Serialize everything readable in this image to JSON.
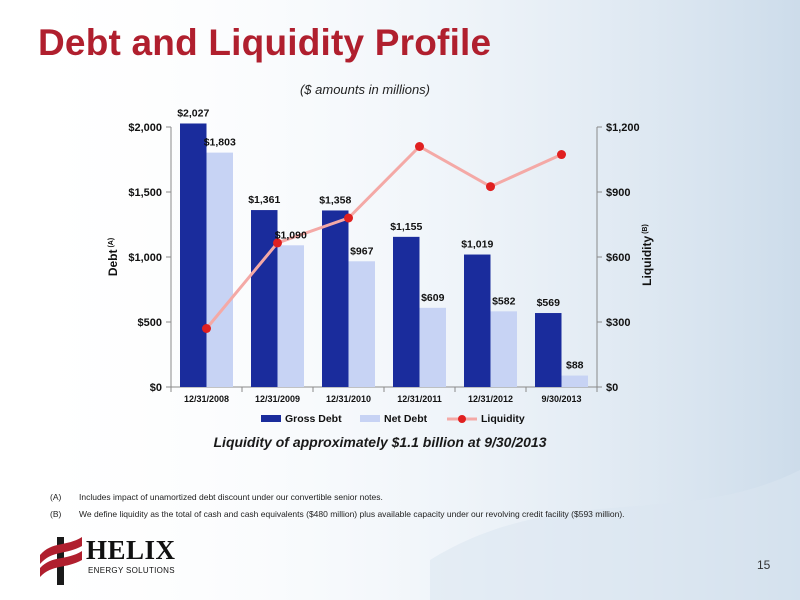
{
  "slide": {
    "title": "Debt and Liquidity Profile",
    "subtitle": "($ amounts in millions)",
    "caption": "Liquidity of approximately $1.1 billion at 9/30/2013",
    "page_number": "15",
    "footnotes": [
      {
        "mark": "(A)",
        "text": "Includes impact of unamortized debt discount under our convertible senior notes."
      },
      {
        "mark": "(B)",
        "text": "We define liquidity as the total of cash and cash equivalents ($480 million) plus available capacity under our revolving credit facility ($593 million)."
      }
    ],
    "logo": {
      "name": "HELIX",
      "tagline": "ENERGY SOLUTIONS"
    },
    "colors": {
      "title": "#b01f2e",
      "gross_debt": "#1a2c9c",
      "net_debt": "#c7d3f4",
      "liquidity_line": "#f4a9a6",
      "liquidity_marker": "#e02020"
    }
  },
  "chart_data": {
    "type": "bar",
    "categories": [
      "12/31/2008",
      "12/31/2009",
      "12/31/2010",
      "12/31/2011",
      "12/31/2012",
      "9/30/2013"
    ],
    "series": [
      {
        "name": "Gross Debt",
        "type": "bar",
        "axis": "left",
        "values": [
          2027,
          1361,
          1358,
          1155,
          1019,
          569
        ],
        "labels": [
          "$2,027",
          "$1,361",
          "$1,358",
          "$1,155",
          "$1,019",
          "$569"
        ]
      },
      {
        "name": "Net Debt",
        "type": "bar",
        "axis": "left",
        "values": [
          1803,
          1090,
          967,
          609,
          582,
          88
        ],
        "labels": [
          "$1,803",
          "$1,090",
          "$967",
          "$609",
          "$582",
          "$88"
        ]
      },
      {
        "name": "Liquidity",
        "type": "line",
        "axis": "right",
        "values": [
          270,
          665,
          780,
          1110,
          925,
          1073
        ]
      }
    ],
    "ylabel": "Debt",
    "ylabel_note": "(A)",
    "y2label": "Liquidity",
    "y2label_note": "(B)",
    "ylim": [
      0,
      2000
    ],
    "y2lim": [
      0,
      1200
    ],
    "yticks": [
      "$0",
      "$500",
      "$1,000",
      "$1,500",
      "$2,000"
    ],
    "y2ticks": [
      "$0",
      "$300",
      "$600",
      "$900",
      "$1,200"
    ],
    "grid": false,
    "legend": "bottom"
  }
}
